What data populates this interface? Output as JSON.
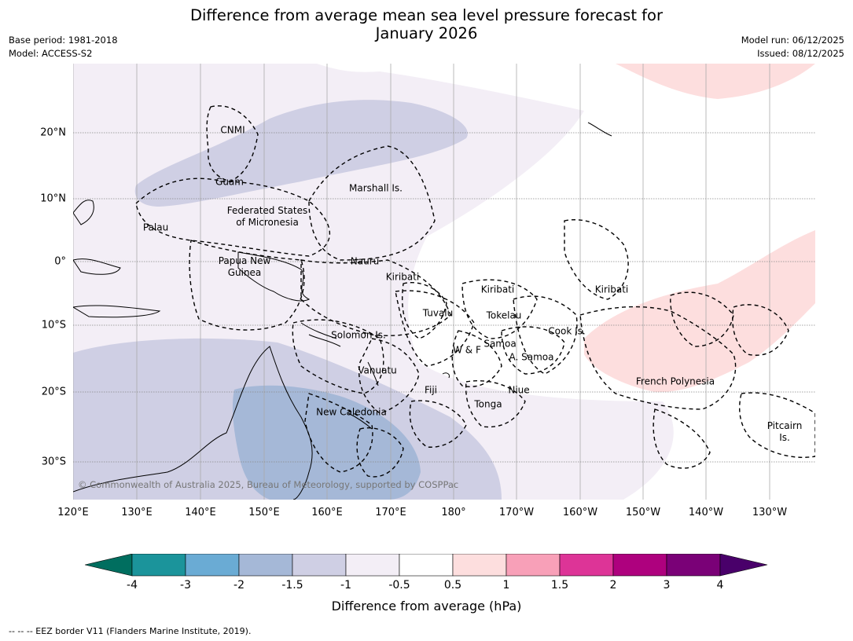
{
  "title_line1": "Difference from average mean sea level pressure forecast for",
  "title_line2": "January 2026",
  "meta": {
    "base_period": "Base period: 1981-2018",
    "model": "Model: ACCESS-S2",
    "model_run": "Model run: 06/12/2025",
    "issued": "Issued: 08/12/2025"
  },
  "map": {
    "lon_labels": [
      "120°E",
      "130°E",
      "140°E",
      "150°E",
      "160°E",
      "170°E",
      "180°",
      "170°W",
      "160°W",
      "150°W",
      "140°W",
      "130°W"
    ],
    "lat_labels": [
      "20°N",
      "10°N",
      "0°",
      "10°S",
      "20°S",
      "30°S"
    ],
    "places": [
      {
        "name": "CNMI"
      },
      {
        "name": "Guam"
      },
      {
        "name": "Marshall Is."
      },
      {
        "name": "Federated States\nof Micronesia"
      },
      {
        "name": "Palau"
      },
      {
        "name": "Papua New\nGuinea"
      },
      {
        "name": "Nauru"
      },
      {
        "name": "Kiribati"
      },
      {
        "name": "Kiribati"
      },
      {
        "name": "Kiribati"
      },
      {
        "name": "Tuvalu"
      },
      {
        "name": "Tokelau"
      },
      {
        "name": "Solomon Is."
      },
      {
        "name": "Cook Is."
      },
      {
        "name": "W & F"
      },
      {
        "name": "Samoa"
      },
      {
        "name": "A. Samoa"
      },
      {
        "name": "Vanuatu"
      },
      {
        "name": "Fiji"
      },
      {
        "name": "Niue"
      },
      {
        "name": "French Polynesia"
      },
      {
        "name": "Tonga"
      },
      {
        "name": "New Caledonia"
      },
      {
        "name": "Pitcairn\nIs."
      }
    ],
    "copyright": "© Commonwealth of Australia 2025, Bureau of Meteorology, supported by COSPPac"
  },
  "colorbar": {
    "label": "Difference from average (hPa)",
    "ticks": [
      "-4",
      "-3",
      "-2",
      "-1.5",
      "-1",
      "-0.5",
      "0.5",
      "1",
      "1.5",
      "2",
      "3",
      "4"
    ],
    "colors": {
      "lt-4": "#006e5f",
      "-4_-3": "#1b949b",
      "-3_-2": "#6aabd4",
      "-2_-1.5": "#a5b8d7",
      "-1.5_-1": "#cfcfe4",
      "-1_-0.5": "#f3eef6",
      "-0.5_0.5": "#ffffff",
      "0.5_1": "#fddede",
      "1_1.5": "#f8a0b8",
      "1.5_2": "#dd3497",
      "2_3": "#ae017e",
      "3_4": "#7a0177",
      "gt4": "#49006a"
    }
  },
  "footer": "--  --  -- EEZ border V11 (Flanders Marine Institute, 2019)."
}
